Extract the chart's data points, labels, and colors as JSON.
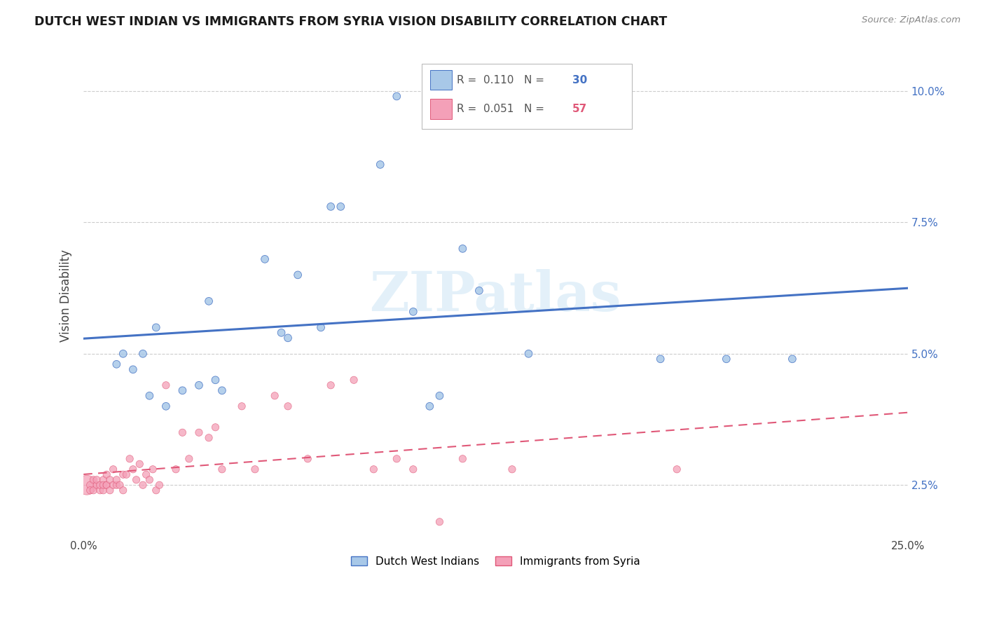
{
  "title": "DUTCH WEST INDIAN VS IMMIGRANTS FROM SYRIA VISION DISABILITY CORRELATION CHART",
  "source": "Source: ZipAtlas.com",
  "ylabel": "Vision Disability",
  "xlim": [
    0.0,
    0.25
  ],
  "ylim": [
    0.015,
    0.107
  ],
  "xticks": [
    0.0,
    0.05,
    0.1,
    0.15,
    0.2,
    0.25
  ],
  "xticklabels": [
    "0.0%",
    "",
    "",
    "",
    "",
    "25.0%"
  ],
  "yticks": [
    0.025,
    0.05,
    0.075,
    0.1
  ],
  "yticklabels": [
    "2.5%",
    "5.0%",
    "7.5%",
    "10.0%"
  ],
  "legend_r1_val": "0.110",
  "legend_n1_val": "30",
  "legend_r2_val": "0.051",
  "legend_n2_val": "57",
  "label1": "Dutch West Indians",
  "label2": "Immigrants from Syria",
  "color1": "#a8c8e8",
  "color2": "#f4a0b8",
  "line_color1": "#4472c4",
  "line_color2": "#e05878",
  "watermark": "ZIPatlas",
  "blue_x": [
    0.01,
    0.012,
    0.015,
    0.018,
    0.02,
    0.022,
    0.025,
    0.03,
    0.035,
    0.038,
    0.04,
    0.042,
    0.055,
    0.06,
    0.062,
    0.065,
    0.072,
    0.075,
    0.078,
    0.09,
    0.095,
    0.1,
    0.105,
    0.108,
    0.115,
    0.12,
    0.135,
    0.175,
    0.195,
    0.215
  ],
  "blue_y": [
    0.048,
    0.05,
    0.047,
    0.05,
    0.042,
    0.055,
    0.04,
    0.043,
    0.044,
    0.06,
    0.045,
    0.043,
    0.068,
    0.054,
    0.053,
    0.065,
    0.055,
    0.078,
    0.078,
    0.086,
    0.099,
    0.058,
    0.04,
    0.042,
    0.07,
    0.062,
    0.05,
    0.049,
    0.049,
    0.049
  ],
  "blue_sizes": [
    60,
    60,
    60,
    60,
    60,
    60,
    60,
    60,
    60,
    60,
    60,
    60,
    60,
    60,
    60,
    60,
    60,
    60,
    60,
    60,
    60,
    60,
    60,
    60,
    60,
    60,
    60,
    60,
    60,
    60
  ],
  "pink_x": [
    0.001,
    0.002,
    0.002,
    0.003,
    0.003,
    0.004,
    0.004,
    0.005,
    0.005,
    0.006,
    0.006,
    0.006,
    0.007,
    0.007,
    0.007,
    0.008,
    0.008,
    0.009,
    0.009,
    0.01,
    0.01,
    0.011,
    0.012,
    0.012,
    0.013,
    0.014,
    0.015,
    0.016,
    0.017,
    0.018,
    0.019,
    0.02,
    0.021,
    0.022,
    0.023,
    0.025,
    0.028,
    0.03,
    0.032,
    0.035,
    0.038,
    0.04,
    0.042,
    0.048,
    0.052,
    0.058,
    0.062,
    0.068,
    0.075,
    0.082,
    0.088,
    0.095,
    0.1,
    0.108,
    0.115,
    0.13,
    0.18
  ],
  "pink_y": [
    0.025,
    0.025,
    0.024,
    0.026,
    0.024,
    0.025,
    0.026,
    0.024,
    0.025,
    0.026,
    0.024,
    0.025,
    0.025,
    0.027,
    0.025,
    0.024,
    0.026,
    0.025,
    0.028,
    0.025,
    0.026,
    0.025,
    0.027,
    0.024,
    0.027,
    0.03,
    0.028,
    0.026,
    0.029,
    0.025,
    0.027,
    0.026,
    0.028,
    0.024,
    0.025,
    0.044,
    0.028,
    0.035,
    0.03,
    0.035,
    0.034,
    0.036,
    0.028,
    0.04,
    0.028,
    0.042,
    0.04,
    0.03,
    0.044,
    0.045,
    0.028,
    0.03,
    0.028,
    0.018,
    0.03,
    0.028,
    0.028
  ],
  "pink_sizes_base": 55,
  "pink_large_idx": 0,
  "pink_large_size": 400
}
